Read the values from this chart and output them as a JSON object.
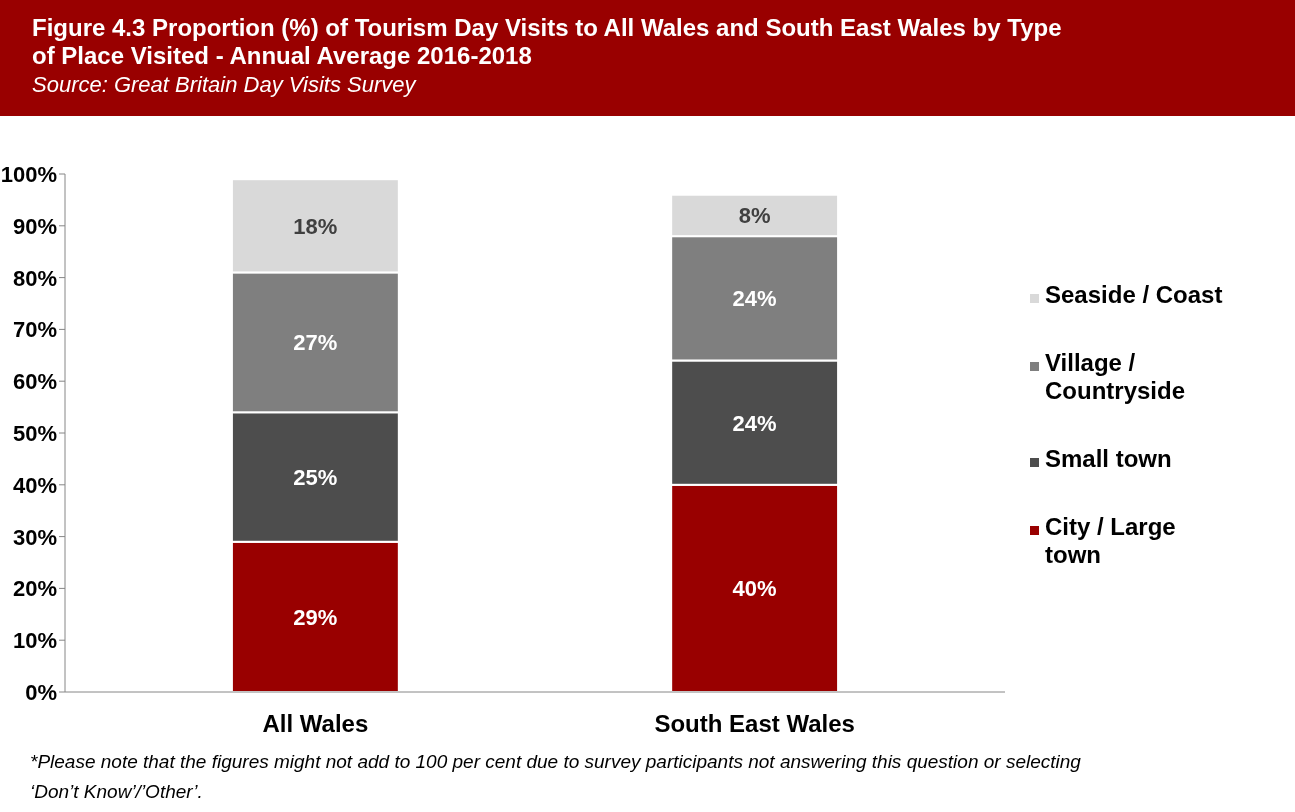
{
  "chart_data": {
    "type": "bar",
    "title": "Figure 4.3 Proportion (%) of Tourism Day Visits to All Wales and South East Wales by Type of Place Visited - Annual Average 2016-2018",
    "subtitle": "Source: Great Britain Day Visits Survey",
    "categories": [
      "All Wales",
      "South East Wales"
    ],
    "series": [
      {
        "name": "City / Large town",
        "color": "#990000",
        "values": [
          29,
          40
        ],
        "value_labels": [
          "29%",
          "40%"
        ]
      },
      {
        "name": "Small town",
        "color": "#4d4d4d",
        "values": [
          25,
          24
        ],
        "value_labels": [
          "25%",
          "24%"
        ]
      },
      {
        "name": "Village / Countryside",
        "color": "#7f7f7f",
        "values": [
          27,
          24
        ],
        "value_labels": [
          "27%",
          "24%"
        ]
      },
      {
        "name": "Seaside / Coast",
        "color": "#d9d9d9",
        "values": [
          18,
          8
        ],
        "value_labels": [
          "18%",
          "8%"
        ]
      }
    ],
    "stacked": true,
    "legend": "right",
    "grid": false,
    "ylim": [
      0,
      100
    ],
    "yticks": [
      {
        "value": 0,
        "label": "0%"
      },
      {
        "value": 10,
        "label": "10%"
      },
      {
        "value": 20,
        "label": "20%"
      },
      {
        "value": 30,
        "label": "30%"
      },
      {
        "value": 40,
        "label": "40%"
      },
      {
        "value": 50,
        "label": "50%"
      },
      {
        "value": 60,
        "label": "60%"
      },
      {
        "value": 70,
        "label": "70%"
      },
      {
        "value": 80,
        "label": "80%"
      },
      {
        "value": 90,
        "label": "90%"
      },
      {
        "value": 100,
        "label": "100%"
      }
    ],
    "annotations": [
      "*Please note that the figures might not add to 100 per cent due to survey participants not answering this question or selecting ‘Don’t Know’/’Other’."
    ]
  }
}
